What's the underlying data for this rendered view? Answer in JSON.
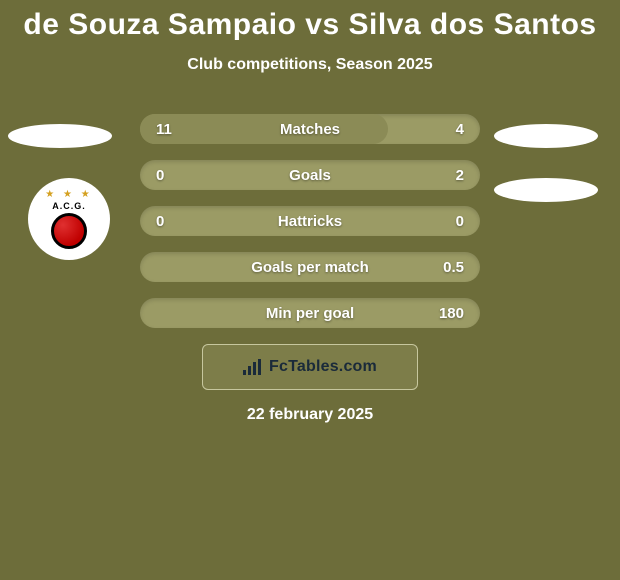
{
  "header": {
    "title": "de Souza Sampaio vs Silva dos Santos",
    "subtitle": "Club competitions, Season 2025"
  },
  "decorations": {
    "oval_color": "#ffffff",
    "ovals": [
      {
        "pos": "top-left"
      },
      {
        "pos": "top-right"
      },
      {
        "pos": "mid-right"
      }
    ]
  },
  "club_badge": {
    "stars": "★ ★ ★",
    "initials": "A.C.G.",
    "ball_color": "#c00000"
  },
  "stats": {
    "bar_bg": "#9b9b65",
    "bar_fill": "#8b8b56",
    "text_color": "#ffffff",
    "rows": [
      {
        "left": "11",
        "label": "Matches",
        "right": "4",
        "fill_pct": 73
      },
      {
        "left": "0",
        "label": "Goals",
        "right": "2",
        "fill_pct": 0
      },
      {
        "left": "0",
        "label": "Hattricks",
        "right": "0",
        "fill_pct": 0
      },
      {
        "left": "",
        "label": "Goals per match",
        "right": "0.5",
        "fill_pct": 0
      },
      {
        "left": "",
        "label": "Min per goal",
        "right": "180",
        "fill_pct": 0
      }
    ]
  },
  "footer": {
    "brand_text": "FcTables.com",
    "date": "22 february 2025"
  },
  "colors": {
    "page_bg": "#6d6d3a",
    "title_color": "#ffffff",
    "footer_box_bg": "#7d7d49",
    "footer_box_border": "#c7c79e",
    "brand_icon_color": "#1a2a3a"
  }
}
